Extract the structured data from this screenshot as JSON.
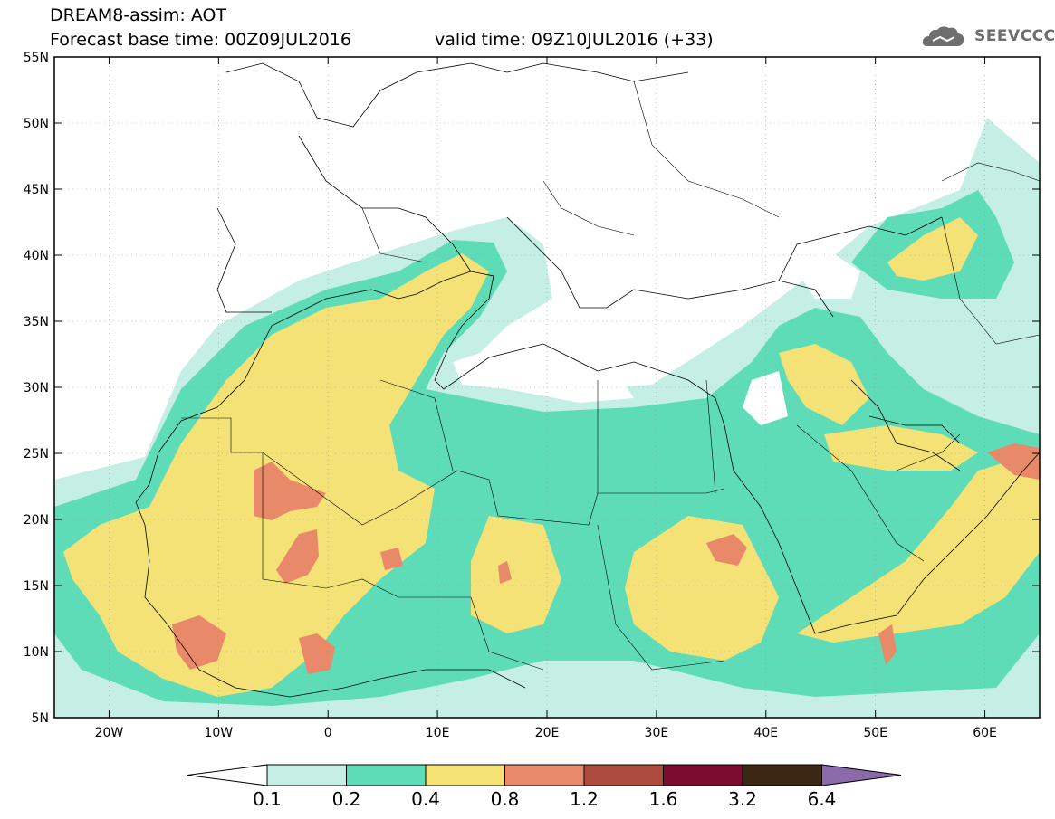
{
  "header": {
    "title": "DREAM8-assim: AOT",
    "base_time": "Forecast base time: 00Z09JUL2016",
    "valid_time": "valid time: 09Z10JUL2016 (+33)"
  },
  "logo": {
    "text": "SEEVCCC",
    "icon": "cloud-icon",
    "color": "#6e6e6e"
  },
  "map": {
    "lon_range": [
      -25,
      65
    ],
    "lat_range": [
      5,
      55
    ],
    "lat_labels": [
      "55N",
      "50N",
      "45N",
      "40N",
      "35N",
      "30N",
      "25N",
      "20N",
      "15N",
      "10N",
      "5N"
    ],
    "lon_labels": [
      "20W",
      "10W",
      "0",
      "10E",
      "20E",
      "30E",
      "40E",
      "50E",
      "60E"
    ],
    "lat_values": [
      55,
      50,
      45,
      40,
      35,
      30,
      25,
      20,
      15,
      10,
      5
    ],
    "lon_values": [
      -20,
      -10,
      0,
      10,
      20,
      30,
      40,
      50,
      60
    ]
  },
  "colorbar": {
    "labels": [
      "0.1",
      "0.2",
      "0.4",
      "0.8",
      "1.2",
      "1.6",
      "3.2",
      "6.4"
    ],
    "colors": [
      "#ffffff",
      "#c5eee4",
      "#5edcb8",
      "#f5e276",
      "#e8896a",
      "#ae4b3f",
      "#7d0d2f",
      "#3c2614",
      "#8a6aa8"
    ]
  }
}
